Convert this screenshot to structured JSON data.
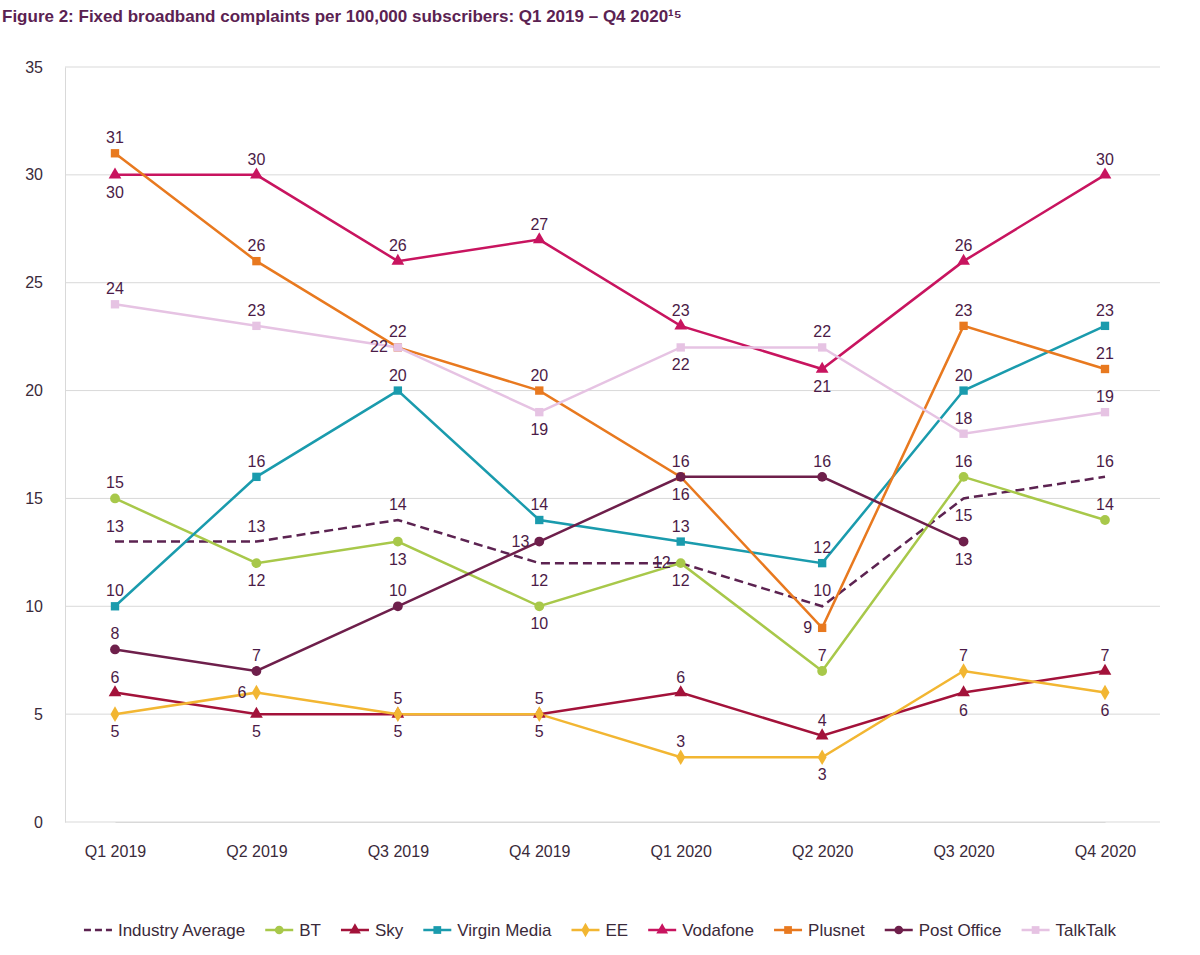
{
  "chart_data": {
    "type": "line",
    "title": "Figure 2: Fixed broadband complaints per 100,000 subscribers: Q1 2019 – Q4 2020¹⁵",
    "categories": [
      "Q1 2019",
      "Q2 2019",
      "Q3 2019",
      "Q4 2019",
      "Q1 2020",
      "Q2 2020",
      "Q3 2020",
      "Q4 2020"
    ],
    "series": [
      {
        "name": "Industry Average",
        "color": "#5c2351",
        "marker": "none",
        "line_style": "dashed",
        "values": [
          13,
          13,
          14,
          12,
          12,
          10,
          15,
          16
        ]
      },
      {
        "name": "BT",
        "color": "#a8c84a",
        "marker": "circle",
        "line_style": "solid",
        "values": [
          15,
          12,
          13,
          10,
          12,
          7,
          16,
          14
        ]
      },
      {
        "name": "Sky",
        "color": "#a3123a",
        "marker": "triangle",
        "line_style": "solid",
        "values": [
          6,
          5,
          5,
          5,
          6,
          4,
          6,
          7
        ]
      },
      {
        "name": "Virgin Media",
        "color": "#1a9bad",
        "marker": "square",
        "line_style": "solid",
        "values": [
          10,
          16,
          20,
          14,
          13,
          12,
          20,
          23
        ]
      },
      {
        "name": "EE",
        "color": "#f2b632",
        "marker": "diamond",
        "line_style": "solid",
        "values": [
          5,
          6,
          5,
          5,
          3,
          3,
          7,
          6
        ]
      },
      {
        "name": "Vodafone",
        "color": "#c8145f",
        "marker": "triangle",
        "line_style": "solid",
        "values": [
          30,
          30,
          26,
          27,
          23,
          21,
          26,
          30
        ]
      },
      {
        "name": "Plusnet",
        "color": "#e8791f",
        "marker": "square",
        "line_style": "solid",
        "values": [
          31,
          26,
          22,
          20,
          16,
          9,
          23,
          21
        ]
      },
      {
        "name": "Post Office",
        "color": "#6e1f4b",
        "marker": "circle",
        "line_style": "solid",
        "values": [
          8,
          7,
          10,
          13,
          16,
          16,
          13,
          null
        ]
      },
      {
        "name": "TalkTalk",
        "color": "#e6c3e3",
        "marker": "square",
        "line_style": "solid",
        "values": [
          24,
          23,
          22,
          19,
          22,
          22,
          18,
          19
        ]
      }
    ],
    "ylim": [
      0,
      35
    ],
    "yticks": [
      0,
      5,
      10,
      15,
      20,
      25,
      30,
      35
    ],
    "grid": true,
    "legend": "bottom",
    "data_labels": true
  }
}
